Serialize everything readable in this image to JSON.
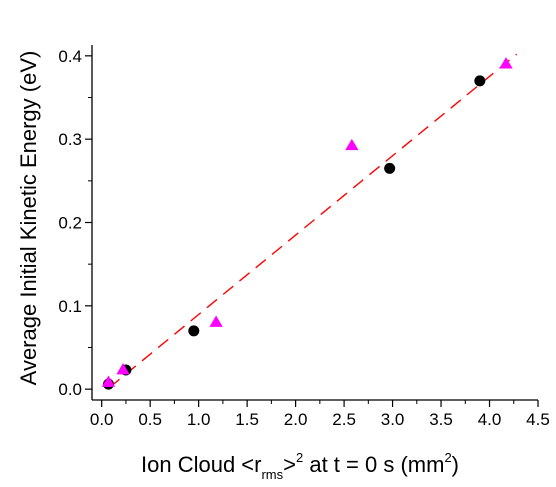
{
  "chart_data": {
    "type": "scatter",
    "title": "",
    "xlabel": {
      "prefix": "Ion Cloud <r",
      "subscript": "rms",
      "middle": ">",
      "superscript": "2",
      "suffix": " at t = 0 s (mm",
      "superscript2": "2",
      "end": ")"
    },
    "ylabel": "Average Initial Kinetic Energy (eV)",
    "xlim": [
      -0.1,
      4.5
    ],
    "ylim": [
      -0.013,
      0.413
    ],
    "x_ticks": [
      "0.0",
      "0.5",
      "1.0",
      "1.5",
      "2.0",
      "2.5",
      "3.0",
      "3.5",
      "4.0",
      "4.5"
    ],
    "y_ticks": [
      "0.0",
      "0.1",
      "0.2",
      "0.3",
      "0.4"
    ],
    "grid": false,
    "legend": "none",
    "series": [
      {
        "marker": "circle",
        "color": "#000000",
        "points": [
          {
            "x": 0.07,
            "y": 0.006
          },
          {
            "x": 0.25,
            "y": 0.023
          },
          {
            "x": 0.95,
            "y": 0.07
          },
          {
            "x": 2.97,
            "y": 0.265
          },
          {
            "x": 3.9,
            "y": 0.37
          }
        ]
      },
      {
        "marker": "triangle",
        "color": "#ff00ff",
        "points": [
          {
            "x": 0.07,
            "y": 0.008
          },
          {
            "x": 0.22,
            "y": 0.023
          },
          {
            "x": 1.18,
            "y": 0.08
          },
          {
            "x": 2.58,
            "y": 0.292
          },
          {
            "x": 4.17,
            "y": 0.39
          }
        ]
      }
    ],
    "fit_line": {
      "style": "dashed",
      "color": "#ff0000",
      "x": [
        0.08,
        4.28
      ],
      "y": [
        0.002,
        0.402
      ]
    }
  }
}
